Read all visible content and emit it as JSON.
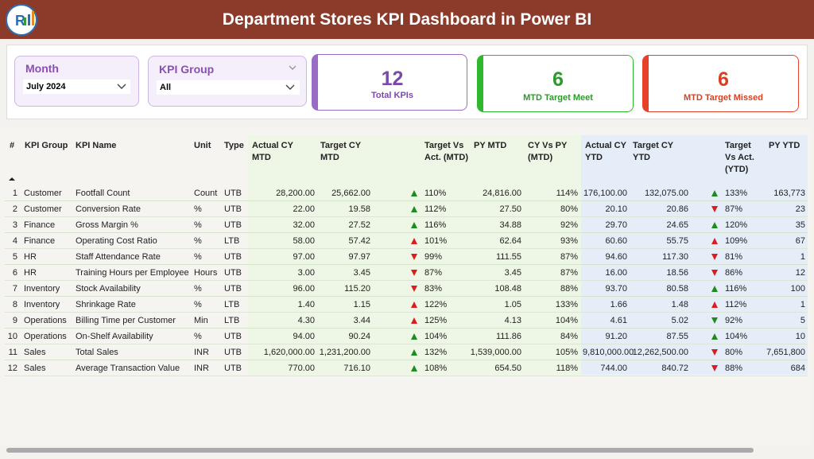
{
  "header": {
    "title": "Department Stores KPI Dashboard in Power BI"
  },
  "slicers": [
    {
      "label": "Month",
      "value": "July 2024"
    },
    {
      "label": "KPI Group",
      "value": "All"
    }
  ],
  "cards": [
    {
      "value": "12",
      "label": "Total KPIs"
    },
    {
      "value": "6",
      "label": "MTD Target Meet"
    },
    {
      "value": "6",
      "label": "MTD Target Missed"
    }
  ],
  "table": {
    "columns": [
      "#",
      "KPI Group",
      "KPI Name",
      "Unit",
      "Type",
      "Actual CY MTD",
      "Target CY MTD",
      "Target Vs Act. (MTD)",
      "PY MTD",
      "CY Vs PY (MTD)",
      "Actual CY YTD",
      "Target CY YTD",
      "Target Vs Act. (YTD)",
      "PY YTD"
    ],
    "rows": [
      [
        "1",
        "Customer",
        "Footfall Count",
        "Count",
        "UTB",
        "28,200.00",
        "25,662.00",
        "110%",
        "24,816.00",
        "114%",
        "176,100.00",
        "132,075.00",
        "133%",
        "163,773"
      ],
      [
        "2",
        "Customer",
        "Conversion Rate",
        "%",
        "UTB",
        "22.00",
        "19.58",
        "112%",
        "27.50",
        "80%",
        "20.10",
        "20.86",
        "87%",
        "23"
      ],
      [
        "3",
        "Finance",
        "Gross Margin %",
        "%",
        "UTB",
        "32.00",
        "27.52",
        "116%",
        "34.88",
        "92%",
        "29.70",
        "24.65",
        "120%",
        "35"
      ],
      [
        "4",
        "Finance",
        "Operating Cost Ratio",
        "%",
        "LTB",
        "58.00",
        "57.42",
        "101%",
        "62.64",
        "93%",
        "60.60",
        "55.75",
        "109%",
        "67"
      ],
      [
        "5",
        "HR",
        "Staff Attendance Rate",
        "%",
        "UTB",
        "97.00",
        "97.97",
        "99%",
        "111.55",
        "87%",
        "94.60",
        "117.30",
        "81%",
        "1"
      ],
      [
        "6",
        "HR",
        "Training Hours per Employee",
        "Hours",
        "UTB",
        "3.00",
        "3.45",
        "87%",
        "3.45",
        "87%",
        "16.00",
        "18.56",
        "86%",
        "12"
      ],
      [
        "7",
        "Inventory",
        "Stock Availability",
        "%",
        "UTB",
        "96.00",
        "115.20",
        "83%",
        "108.48",
        "88%",
        "93.70",
        "80.58",
        "116%",
        "100"
      ],
      [
        "8",
        "Inventory",
        "Shrinkage Rate",
        "%",
        "LTB",
        "1.40",
        "1.15",
        "122%",
        "1.05",
        "133%",
        "1.66",
        "1.48",
        "112%",
        "1"
      ],
      [
        "9",
        "Operations",
        "Billing Time per Customer",
        "Min",
        "LTB",
        "4.30",
        "3.44",
        "125%",
        "4.13",
        "104%",
        "4.61",
        "5.02",
        "92%",
        "5"
      ],
      [
        "10",
        "Operations",
        "On-Shelf Availability",
        "%",
        "UTB",
        "94.00",
        "90.24",
        "104%",
        "111.86",
        "84%",
        "91.20",
        "87.55",
        "104%",
        "10"
      ],
      [
        "11",
        "Sales",
        "Total Sales",
        "INR",
        "UTB",
        "1,620,000.00",
        "1,231,200.00",
        "132%",
        "1,539,000.00",
        "105%",
        "9,810,000.00",
        "12,262,500.00",
        "80%",
        "7,651,800"
      ],
      [
        "12",
        "Sales",
        "Average Transaction Value",
        "INR",
        "UTB",
        "770.00",
        "716.10",
        "108%",
        "654.50",
        "118%",
        "744.00",
        "840.72",
        "88%",
        "684"
      ]
    ],
    "mtd_icons": [
      "up-good",
      "up-good",
      "up-good",
      "up-bad",
      "down-bad",
      "down-bad",
      "down-bad",
      "up-bad",
      "up-bad",
      "up-good",
      "up-good",
      "up-good"
    ],
    "ytd_icons": [
      "up-good",
      "down-bad",
      "up-good",
      "up-bad",
      "down-bad",
      "down-bad",
      "up-good",
      "up-bad",
      "down-good",
      "up-good",
      "down-bad",
      "down-bad"
    ]
  }
}
